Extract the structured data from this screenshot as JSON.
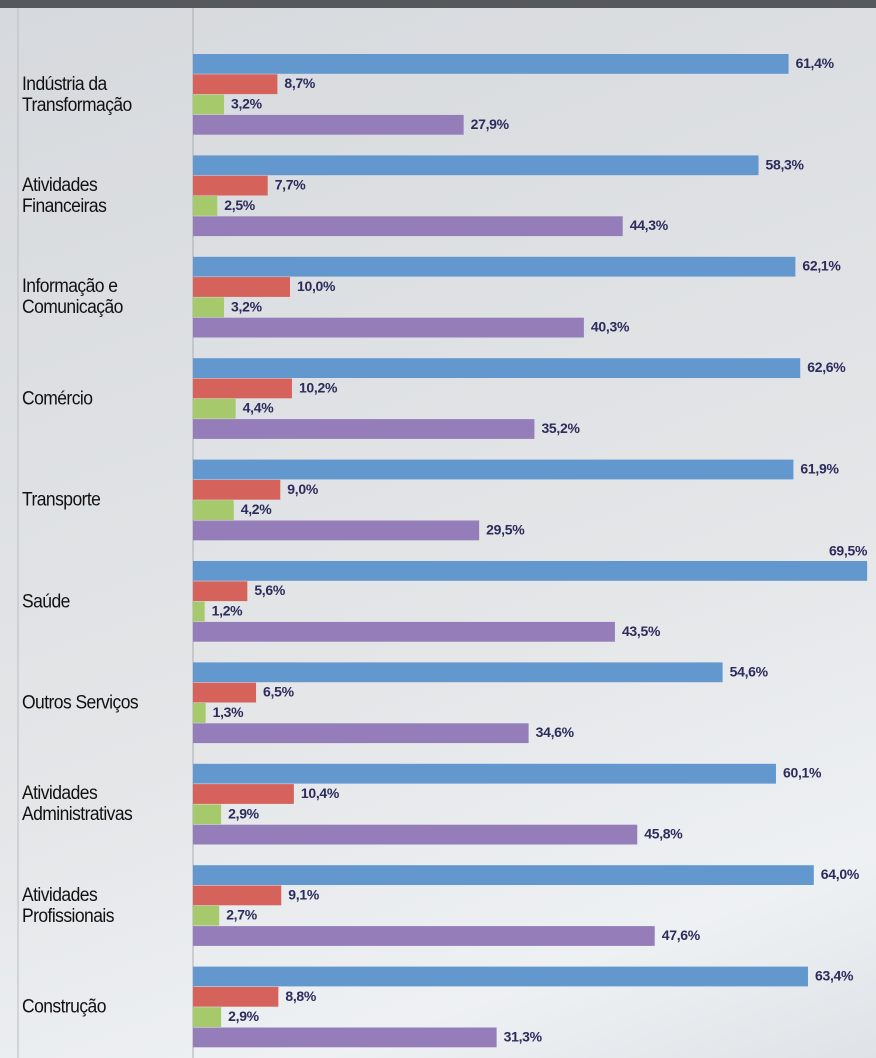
{
  "chart_data": {
    "type": "grouped-hbar",
    "categories": [
      "Indústria da Transformação",
      "Atividades Financeiras",
      "Informação e Comunicação",
      "Comércio",
      "Transporte",
      "Saúde",
      "Outros Serviços",
      "Atividades Administrativas",
      "Atividades Profissionais",
      "Construção"
    ],
    "series": [
      {
        "color": "#6398cf",
        "values": [
          61.4,
          58.3,
          62.1,
          62.6,
          61.9,
          69.5,
          54.6,
          60.1,
          64.0,
          63.4
        ],
        "value_labels": [
          "61,4%",
          "58,3%",
          "62,1%",
          "62,6%",
          "61,9%",
          "69,5%",
          "54,6%",
          "60,1%",
          "64,0%",
          "63,4%"
        ]
      },
      {
        "color": "#d5625b",
        "values": [
          8.7,
          7.7,
          10.0,
          10.2,
          9.0,
          5.6,
          6.5,
          10.4,
          9.1,
          8.8
        ],
        "value_labels": [
          "8,7%",
          "7,7%",
          "10,0%",
          "10,2%",
          "9,0%",
          "5,6%",
          "6,5%",
          "10,4%",
          "9,1%",
          "8,8%"
        ]
      },
      {
        "color": "#a6c96c",
        "values": [
          3.2,
          2.5,
          3.2,
          4.4,
          4.2,
          1.2,
          1.3,
          2.9,
          2.7,
          2.9
        ],
        "value_labels": [
          "3,2%",
          "2,5%",
          "3,2%",
          "4,4%",
          "4,2%",
          "1,2%",
          "1,3%",
          "2,9%",
          "2,7%",
          "2,9%"
        ]
      },
      {
        "color": "#957dba",
        "values": [
          27.9,
          44.3,
          40.3,
          35.2,
          29.5,
          43.5,
          34.6,
          45.8,
          47.6,
          31.3
        ],
        "value_labels": [
          "27,9%",
          "44,3%",
          "40,3%",
          "35,2%",
          "29,5%",
          "43,5%",
          "34,6%",
          "45,8%",
          "47,6%",
          "31,3%"
        ]
      }
    ],
    "xlim": [
      0,
      70
    ]
  }
}
